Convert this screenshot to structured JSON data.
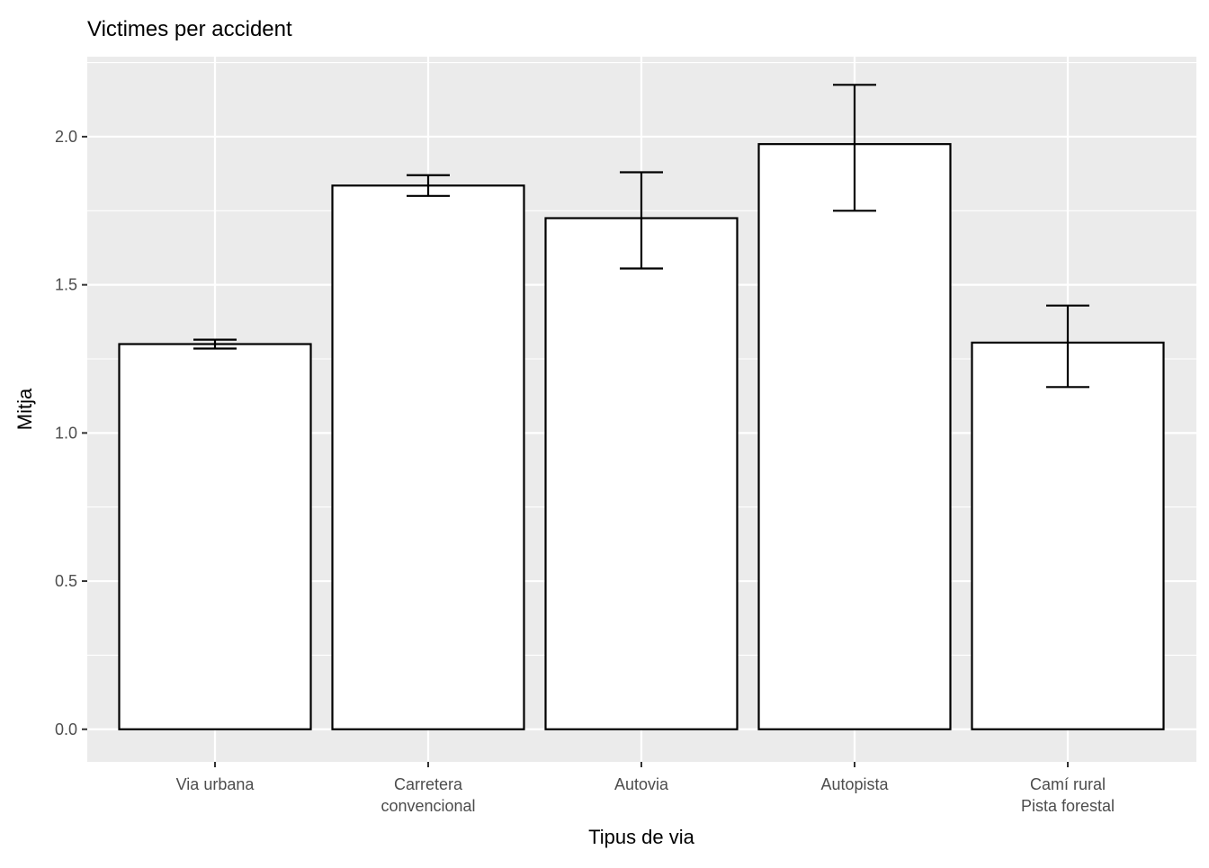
{
  "chart_data": {
    "type": "bar",
    "title": "Victimes per accident",
    "xlabel": "Tipus de via",
    "ylabel": "Mitja",
    "categories": [
      [
        "Via urbana"
      ],
      [
        "Carretera",
        "convencional"
      ],
      [
        "Autovia"
      ],
      [
        "Autopista"
      ],
      [
        "Camí rural",
        "Pista forestal"
      ]
    ],
    "values": [
      1.3,
      1.835,
      1.725,
      1.975,
      1.305
    ],
    "error_low": [
      1.285,
      1.8,
      1.555,
      1.75,
      1.155
    ],
    "error_high": [
      1.315,
      1.87,
      1.88,
      2.175,
      1.43
    ],
    "yticks": [
      "0.0",
      "0.5",
      "1.0",
      "1.5",
      "2.0"
    ],
    "ylim": [
      -0.11,
      2.27
    ],
    "grid": true,
    "colors": {
      "panel": "#ebebeb",
      "grid": "#ffffff",
      "bar_fill": "#ffffff",
      "bar_stroke": "#000000",
      "tick_text": "#4d4d4d",
      "axis_text": "#000000"
    }
  }
}
